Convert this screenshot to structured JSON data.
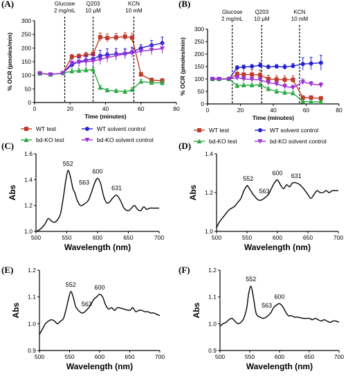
{
  "chart_data": [
    {
      "panel": "(A)",
      "type": "line",
      "xlabel": "Time (minutes)",
      "ylabel": "% OCR (pmoles/min)",
      "xlim": [
        0,
        80
      ],
      "ylim": [
        0,
        300
      ],
      "xticks": [
        0,
        20,
        40,
        60,
        80
      ],
      "yticks": [
        0,
        50,
        100,
        150,
        200,
        250,
        300
      ],
      "x": [
        3,
        9,
        16,
        21,
        25,
        29,
        33,
        37,
        41,
        46,
        51,
        55,
        60,
        66,
        72
      ],
      "injections": [
        {
          "x": 17,
          "line1": "Glucose",
          "line2": "2 mg/mL"
        },
        {
          "x": 33,
          "line1": "Q203",
          "line2": "10 μM"
        },
        {
          "x": 56,
          "line1": "KCN",
          "line2": "10 mM"
        }
      ],
      "series": [
        {
          "name": "WT test",
          "color": "#c0392b",
          "marker": "square",
          "values": [
            107,
            103,
            108,
            168,
            170,
            174,
            178,
            240,
            237,
            239,
            242,
            238,
            103,
            82,
            80
          ],
          "err": [
            6,
            6,
            6,
            8,
            8,
            10,
            12,
            15,
            15,
            14,
            14,
            16,
            8,
            8,
            8
          ]
        },
        {
          "name": "WT solvent control",
          "color": "#2320d6",
          "marker": "circle",
          "values": [
            107,
            103,
            108,
            138,
            150,
            155,
            160,
            172,
            175,
            178,
            180,
            185,
            200,
            210,
            218
          ],
          "err": [
            6,
            6,
            6,
            10,
            14,
            16,
            18,
            20,
            22,
            20,
            18,
            18,
            12,
            18,
            22
          ]
        },
        {
          "name": "bd-KO test",
          "color": "#28a745",
          "marker": "triangle",
          "values": [
            107,
            103,
            108,
            115,
            117,
            119,
            121,
            55,
            45,
            43,
            40,
            47,
            77,
            73,
            72
          ],
          "err": [
            6,
            6,
            6,
            8,
            8,
            8,
            8,
            8,
            6,
            6,
            6,
            8,
            8,
            8,
            8
          ]
        },
        {
          "name": "bd-KO solvent control",
          "color": "#9b30d8",
          "marker": "triangle-down",
          "values": [
            107,
            103,
            108,
            145,
            148,
            150,
            152,
            158,
            165,
            172,
            178,
            182,
            188,
            193,
            198
          ],
          "err": [
            6,
            6,
            6,
            15,
            18,
            18,
            20,
            18,
            18,
            16,
            16,
            16,
            16,
            18,
            18
          ]
        }
      ]
    },
    {
      "panel": "(B)",
      "type": "line",
      "xlabel": "Time (minutes)",
      "ylabel": "% OCR (pmoles/min)",
      "xlim": [
        0,
        80
      ],
      "ylim": [
        0,
        300
      ],
      "xticks": [
        0,
        20,
        40,
        60,
        80
      ],
      "yticks": [
        0,
        50,
        100,
        150,
        200,
        250,
        300
      ],
      "x": [
        3,
        7,
        13,
        18,
        22,
        27,
        32,
        37,
        42,
        47,
        52,
        58,
        63,
        69
      ],
      "injections": [
        {
          "x": 15,
          "line1": "Glucose",
          "line2": "2 mg/mL"
        },
        {
          "x": 33,
          "line1": "Q203",
          "line2": "10 μM"
        },
        {
          "x": 56,
          "line1": "KCN",
          "line2": "10 mM"
        }
      ],
      "series": [
        {
          "name": "WT test",
          "color": "#c0392b",
          "marker": "square",
          "values": [
            100,
            100,
            100,
            120,
            118,
            118,
            116,
            100,
            98,
            97,
            97,
            25,
            25,
            22
          ],
          "err": [
            4,
            4,
            4,
            25,
            25,
            20,
            20,
            15,
            15,
            15,
            15,
            8,
            8,
            8
          ]
        },
        {
          "name": "WT solvent control",
          "color": "#2320d6",
          "marker": "circle",
          "values": [
            100,
            100,
            100,
            145,
            148,
            150,
            155,
            148,
            150,
            148,
            152,
            160,
            162,
            165
          ],
          "err": [
            4,
            4,
            4,
            8,
            8,
            8,
            10,
            8,
            8,
            10,
            10,
            25,
            25,
            30
          ]
        },
        {
          "name": "bd-KO test",
          "color": "#28a745",
          "marker": "triangle",
          "values": [
            100,
            100,
            100,
            73,
            75,
            75,
            76,
            60,
            50,
            45,
            43,
            10,
            8,
            8
          ],
          "err": [
            4,
            4,
            4,
            8,
            8,
            8,
            8,
            8,
            8,
            8,
            8,
            4,
            4,
            4
          ]
        },
        {
          "name": "bd-KO solvent control",
          "color": "#9b30d8",
          "marker": "triangle-down",
          "values": [
            100,
            100,
            100,
            105,
            100,
            98,
            97,
            85,
            80,
            70,
            65,
            88,
            80,
            75
          ],
          "err": [
            4,
            4,
            4,
            10,
            10,
            10,
            10,
            10,
            10,
            10,
            10,
            12,
            10,
            10
          ]
        }
      ]
    },
    {
      "panel": "(C)",
      "type": "line",
      "xlabel": "Wavelength (nm)",
      "ylabel": "Abs",
      "xlim": [
        500,
        700
      ],
      "ylim": [
        1.0,
        1.6
      ],
      "xticks": [
        500,
        550,
        600,
        650,
        700
      ],
      "yticks": [
        1.0,
        1.2,
        1.4,
        1.6
      ],
      "ytick_labels": [
        "1.0",
        "1.2",
        "1.4",
        "1.6"
      ],
      "peaks": [
        {
          "label": "552",
          "x": 552,
          "y": 1.47
        },
        {
          "label": "563",
          "x": 563,
          "y": 1.35
        },
        {
          "label": "600",
          "x": 600,
          "y": 1.41
        },
        {
          "label": "631",
          "x": 631,
          "y": 1.28
        }
      ],
      "series": [
        {
          "x": [
            500,
            505,
            510,
            515,
            520,
            525,
            530,
            535,
            540,
            545,
            548,
            552,
            556,
            560,
            563,
            567,
            572,
            578,
            585,
            590,
            595,
            600,
            605,
            610,
            615,
            620,
            625,
            631,
            637,
            643,
            650,
            655,
            660,
            665,
            670,
            675,
            680,
            685,
            690,
            695,
            700
          ],
          "y": [
            1.0,
            1.01,
            1.03,
            1.06,
            1.1,
            1.08,
            1.07,
            1.09,
            1.14,
            1.28,
            1.38,
            1.47,
            1.42,
            1.33,
            1.3,
            1.24,
            1.2,
            1.21,
            1.24,
            1.3,
            1.37,
            1.41,
            1.37,
            1.27,
            1.22,
            1.23,
            1.26,
            1.28,
            1.24,
            1.18,
            1.16,
            1.18,
            1.2,
            1.17,
            1.16,
            1.19,
            1.17,
            1.18,
            1.18,
            1.18,
            1.18
          ]
        }
      ]
    },
    {
      "panel": "(D)",
      "type": "line",
      "xlabel": "Wavelength (nm)",
      "ylabel": "Abs",
      "xlim": [
        500,
        700
      ],
      "ylim": [
        1.0,
        1.4
      ],
      "xticks": [
        500,
        550,
        600,
        650,
        700
      ],
      "yticks": [
        1.0,
        1.2,
        1.4
      ],
      "ytick_labels": [
        "1.0",
        "1.2",
        "1.4"
      ],
      "peaks": [
        {
          "label": "552",
          "x": 552,
          "y": 1.235
        },
        {
          "label": "563",
          "x": 563,
          "y": 1.19
        },
        {
          "label": "600",
          "x": 600,
          "y": 1.265
        },
        {
          "label": "631",
          "x": 631,
          "y": 1.25
        }
      ],
      "series": [
        {
          "x": [
            500,
            505,
            510,
            515,
            520,
            525,
            530,
            535,
            540,
            545,
            550,
            552,
            556,
            560,
            563,
            567,
            572,
            578,
            585,
            590,
            595,
            600,
            605,
            610,
            615,
            620,
            625,
            631,
            637,
            643,
            650,
            655,
            660,
            665,
            670,
            675,
            680,
            685,
            690,
            695,
            700
          ],
          "y": [
            1.02,
            1.05,
            1.07,
            1.09,
            1.11,
            1.12,
            1.13,
            1.15,
            1.17,
            1.21,
            1.235,
            1.23,
            1.21,
            1.19,
            1.18,
            1.165,
            1.16,
            1.17,
            1.19,
            1.22,
            1.25,
            1.265,
            1.24,
            1.22,
            1.24,
            1.23,
            1.25,
            1.25,
            1.24,
            1.22,
            1.19,
            1.17,
            1.19,
            1.21,
            1.2,
            1.2,
            1.21,
            1.2,
            1.21,
            1.21,
            1.21
          ]
        }
      ]
    },
    {
      "panel": "(E)",
      "type": "line",
      "xlabel": "Wavelength (nm)",
      "ylabel": "Abs",
      "xlim": [
        500,
        700
      ],
      "ylim": [
        0.9,
        1.2
      ],
      "xticks": [
        500,
        550,
        600,
        650,
        700
      ],
      "yticks": [
        0.9,
        1.0,
        1.1,
        1.2
      ],
      "ytick_labels": [
        "0.9",
        "1.0",
        "1.1",
        "1.2"
      ],
      "peaks": [
        {
          "label": "552",
          "x": 552,
          "y": 1.12
        },
        {
          "label": "563",
          "x": 563,
          "y": 1.06
        },
        {
          "label": "600",
          "x": 600,
          "y": 1.11
        }
      ],
      "series": [
        {
          "x": [
            500,
            505,
            510,
            515,
            520,
            525,
            530,
            535,
            540,
            545,
            548,
            552,
            556,
            560,
            563,
            567,
            572,
            578,
            585,
            590,
            595,
            600,
            605,
            610,
            615,
            620,
            625,
            630,
            640,
            650,
            655,
            660,
            665,
            670,
            675,
            680,
            685,
            690,
            695,
            700
          ],
          "y": [
            0.96,
            0.98,
            1.0,
            1.01,
            1.015,
            1.01,
            1.0,
            1.01,
            1.02,
            1.06,
            1.09,
            1.12,
            1.1,
            1.065,
            1.055,
            1.045,
            1.04,
            1.05,
            1.07,
            1.09,
            1.1,
            1.11,
            1.1,
            1.07,
            1.055,
            1.06,
            1.05,
            1.06,
            1.055,
            1.05,
            1.06,
            1.045,
            1.05,
            1.05,
            1.045,
            1.045,
            1.04,
            1.04,
            1.035,
            1.03
          ]
        }
      ]
    },
    {
      "panel": "(F)",
      "type": "line",
      "xlabel": "Wavelength (nm)",
      "ylabel": "Abs",
      "xlim": [
        500,
        700
      ],
      "ylim": [
        0.9,
        1.2
      ],
      "xticks": [
        500,
        550,
        600,
        650,
        700
      ],
      "yticks": [
        0.9,
        1.0,
        1.1,
        1.2
      ],
      "ytick_labels": [
        "0.9",
        "1.0",
        "1.1",
        "1.2"
      ],
      "peaks": [
        {
          "label": "552",
          "x": 552,
          "y": 1.14
        },
        {
          "label": "563",
          "x": 563,
          "y": 1.055
        },
        {
          "label": "600",
          "x": 600,
          "y": 1.075
        }
      ],
      "series": [
        {
          "x": [
            500,
            505,
            510,
            515,
            520,
            525,
            530,
            535,
            540,
            545,
            548,
            552,
            556,
            560,
            563,
            567,
            572,
            578,
            585,
            590,
            595,
            600,
            605,
            610,
            615,
            620,
            625,
            630,
            640,
            650,
            655,
            660,
            665,
            670,
            675,
            680,
            685,
            690,
            695,
            700
          ],
          "y": [
            0.99,
            1.0,
            1.005,
            1.015,
            1.02,
            1.01,
            1.0,
            1.005,
            1.02,
            1.06,
            1.11,
            1.14,
            1.1,
            1.045,
            1.03,
            1.025,
            1.02,
            1.025,
            1.04,
            1.06,
            1.07,
            1.075,
            1.065,
            1.045,
            1.03,
            1.03,
            1.025,
            1.025,
            1.02,
            1.02,
            1.015,
            1.02,
            1.015,
            1.01,
            1.015,
            1.01,
            1.005,
            1.01,
            1.01,
            1.005
          ]
        }
      ]
    }
  ]
}
